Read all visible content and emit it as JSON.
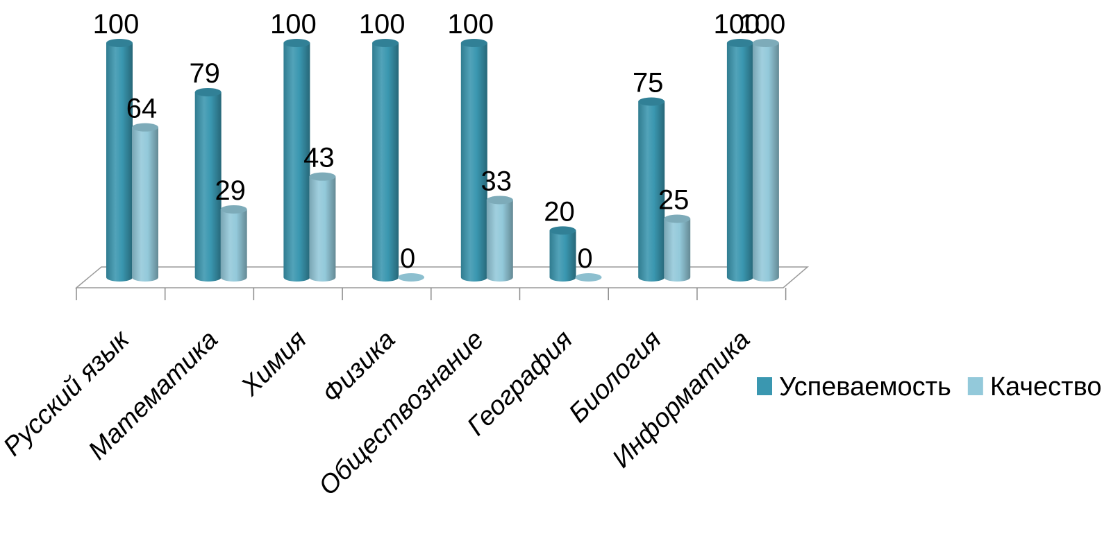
{
  "chart_data": {
    "type": "bar",
    "title": "",
    "xlabel": "",
    "ylabel": "",
    "ylim": [
      0,
      100
    ],
    "grid": false,
    "legend_position": "right",
    "categories": [
      "Русский язык",
      "Математика",
      "Химия",
      "Физика",
      "Обществознание",
      "География",
      "Биология",
      "Информатика"
    ],
    "series": [
      {
        "name": "Успеваемость",
        "color": "#3a97b0",
        "values": [
          100,
          79,
          100,
          100,
          100,
          20,
          75,
          100
        ]
      },
      {
        "name": "Качество",
        "color": "#93c9da",
        "values": [
          64,
          29,
          43,
          0,
          33,
          0,
          25,
          100
        ]
      }
    ]
  }
}
